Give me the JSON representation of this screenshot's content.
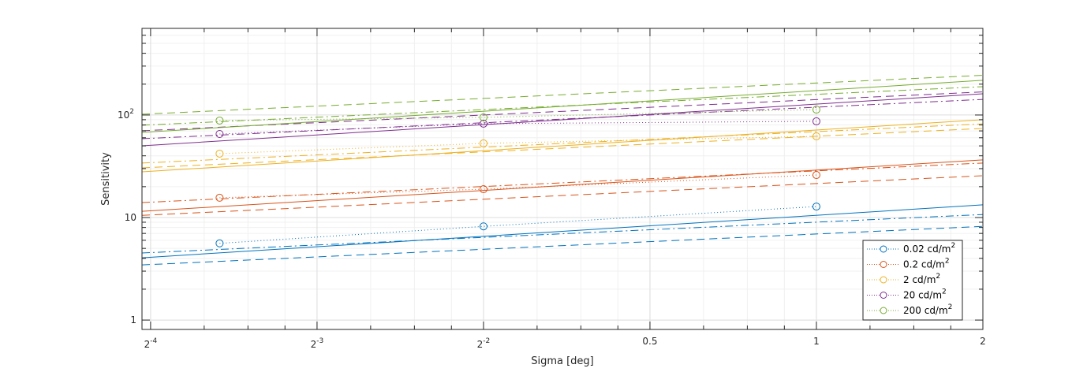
{
  "chart_data": {
    "type": "line",
    "xlabel": "Sigma [deg]",
    "ylabel": "Sensitivity",
    "xscale": "log2",
    "yscale": "log10",
    "xlim": [
      0.0603,
      2
    ],
    "ylim": [
      0.81,
      700
    ],
    "grid": true,
    "legend_position": "bottom-right",
    "x_ticks": [
      {
        "value": 0.0625,
        "base": "2",
        "exp": "-4"
      },
      {
        "value": 0.125,
        "base": "2",
        "exp": "-3"
      },
      {
        "value": 0.25,
        "base": "2",
        "exp": "-2"
      },
      {
        "value": 0.5,
        "base": "0.5",
        "exp": ""
      },
      {
        "value": 1,
        "base": "1",
        "exp": ""
      },
      {
        "value": 2,
        "base": "2",
        "exp": ""
      }
    ],
    "y_ticks": [
      {
        "value": 1,
        "base": "1",
        "exp": ""
      },
      {
        "value": 10,
        "base": "10",
        "exp": ""
      },
      {
        "value": 100,
        "base": "10",
        "exp": "2"
      }
    ],
    "series": [
      {
        "name": "0.02 cd/m",
        "sup": "2",
        "color": "#0072BD",
        "x": [
          0.0833,
          0.25,
          1
        ],
        "measured": [
          5.6,
          8.2,
          12.8
        ],
        "fits": {
          "solid": [
            4.05,
            13.3
          ],
          "dashed": [
            3.45,
            8.2
          ],
          "dashdot": [
            4.51,
            10.7
          ]
        }
      },
      {
        "name": "0.2 cd/m",
        "sup": "2",
        "color": "#D95319",
        "x": [
          0.0833,
          0.25,
          1
        ],
        "measured": [
          15.6,
          18.9,
          26.0
        ],
        "fits": {
          "solid": [
            11.5,
            36.5
          ],
          "dashed": [
            10.5,
            25.6
          ],
          "dashdot": [
            14.0,
            34.0
          ]
        }
      },
      {
        "name": "2 cd/m",
        "sup": "2",
        "color": "#EDB120",
        "x": [
          0.0833,
          0.25,
          1
        ],
        "measured": [
          42.0,
          52.9,
          62.0
        ],
        "fits": {
          "solid": [
            27.9,
            90.0
          ],
          "dashed": [
            30.5,
            74.0
          ],
          "dashdot": [
            34.0,
            82.0
          ]
        }
      },
      {
        "name": "20 cd/m",
        "sup": "2",
        "color": "#7E2F8E",
        "x": [
          0.0833,
          0.25,
          1
        ],
        "measured": [
          65.3,
          82.3,
          86.8
        ],
        "fits": {
          "solid": [
            50.1,
            161
          ],
          "dashed": [
            70.2,
            168
          ],
          "dashdot": [
            58.7,
            142
          ]
        }
      },
      {
        "name": "200 cd/m",
        "sup": "2",
        "color": "#77AC30",
        "x": [
          0.0833,
          0.25,
          1
        ],
        "measured": [
          88.3,
          94.9,
          113
        ],
        "fits": {
          "solid": [
            67.7,
            218
          ],
          "dashed": [
            101.8,
            244
          ],
          "dashdot": [
            79.5,
            189
          ]
        }
      }
    ]
  }
}
